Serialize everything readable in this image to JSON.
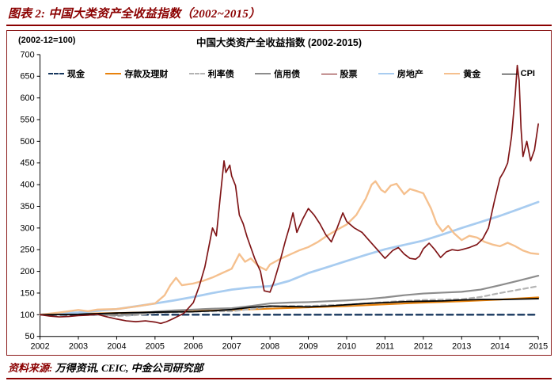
{
  "header": {
    "title": "图表 2:  中国大类资产全收益指数（2002~2015）"
  },
  "chart": {
    "title": "中国大类资产全收益指数 (2002-2015)",
    "base_note": "(2002-12=100)"
  },
  "footer": {
    "label": "资料来源:",
    "sources": " 万得资讯, CEIC, 中金公司研究部"
  },
  "colors": {
    "accent": "#8B0000",
    "axis": "#000000"
  },
  "chart_data": {
    "type": "line",
    "title": "中国大类资产全收益指数 (2002-2015)",
    "subtitle": "(2002-12=100)",
    "xlabel": "",
    "ylabel": "",
    "xlim": [
      2002,
      2015
    ],
    "ylim": [
      50,
      700
    ],
    "x_ticks": [
      2002,
      2003,
      2004,
      2005,
      2006,
      2007,
      2008,
      2009,
      2010,
      2011,
      2012,
      2013,
      2014,
      2015
    ],
    "y_ticks": [
      50,
      100,
      150,
      200,
      250,
      300,
      350,
      400,
      450,
      500,
      550,
      600,
      650,
      700
    ],
    "grid": false,
    "legend_position": "top",
    "series": [
      {
        "id": "cash",
        "name": "现金",
        "color": "#17375E",
        "dash": true,
        "dash_pattern": "8 5",
        "width": 2.4,
        "z": 1,
        "points": [
          [
            2002,
            100
          ],
          [
            2004,
            100
          ],
          [
            2006,
            100
          ],
          [
            2008,
            100
          ],
          [
            2010,
            100
          ],
          [
            2012,
            100
          ],
          [
            2014,
            100
          ],
          [
            2015,
            100
          ]
        ]
      },
      {
        "id": "deposits",
        "name": "存款及理财",
        "color": "#E8820C",
        "dash": false,
        "width": 2.2,
        "z": 2,
        "points": [
          [
            2002,
            100
          ],
          [
            2003,
            102
          ],
          [
            2004,
            104
          ],
          [
            2005,
            106
          ],
          [
            2006,
            108
          ],
          [
            2007,
            111
          ],
          [
            2008,
            114
          ],
          [
            2009,
            117
          ],
          [
            2010,
            120
          ],
          [
            2011,
            124
          ],
          [
            2012,
            128
          ],
          [
            2013,
            131
          ],
          [
            2014,
            135
          ],
          [
            2015,
            140
          ]
        ]
      },
      {
        "id": "rate-bonds",
        "name": "利率债",
        "color": "#B3B3B3",
        "dash": true,
        "dash_pattern": "6 4",
        "width": 2.2,
        "z": 3,
        "points": [
          [
            2002,
            100
          ],
          [
            2002.5,
            102
          ],
          [
            2003,
            103
          ],
          [
            2003.5,
            100
          ],
          [
            2004,
            97
          ],
          [
            2004.5,
            99
          ],
          [
            2005,
            104
          ],
          [
            2005.5,
            106
          ],
          [
            2006,
            107
          ],
          [
            2006.5,
            108
          ],
          [
            2007,
            108
          ],
          [
            2007.5,
            113
          ],
          [
            2008,
            119
          ],
          [
            2008.5,
            120
          ],
          [
            2009,
            120
          ],
          [
            2009.5,
            122
          ],
          [
            2010,
            123
          ],
          [
            2010.5,
            126
          ],
          [
            2011,
            129
          ],
          [
            2011.5,
            132
          ],
          [
            2012,
            134
          ],
          [
            2012.5,
            135
          ],
          [
            2013,
            136
          ],
          [
            2013.5,
            141
          ],
          [
            2014,
            150
          ],
          [
            2014.5,
            158
          ],
          [
            2015,
            166
          ]
        ]
      },
      {
        "id": "credit-bonds",
        "name": "信用债",
        "color": "#8C8C8C",
        "dash": false,
        "width": 2.2,
        "z": 4,
        "points": [
          [
            2002,
            100
          ],
          [
            2002.5,
            103
          ],
          [
            2003,
            104
          ],
          [
            2003.5,
            101
          ],
          [
            2004,
            99
          ],
          [
            2004.5,
            102
          ],
          [
            2005,
            107
          ],
          [
            2005.5,
            110
          ],
          [
            2006,
            112
          ],
          [
            2006.5,
            114
          ],
          [
            2007,
            115
          ],
          [
            2007.5,
            120
          ],
          [
            2008,
            126
          ],
          [
            2008.5,
            128
          ],
          [
            2009,
            129
          ],
          [
            2009.5,
            131
          ],
          [
            2010,
            133
          ],
          [
            2010.5,
            136
          ],
          [
            2011,
            140
          ],
          [
            2011.5,
            145
          ],
          [
            2012,
            149
          ],
          [
            2012.5,
            151
          ],
          [
            2013,
            153
          ],
          [
            2013.5,
            158
          ],
          [
            2014,
            168
          ],
          [
            2014.5,
            179
          ],
          [
            2015,
            190
          ]
        ]
      },
      {
        "id": "real-estate",
        "name": "房地产",
        "color": "#A8CCF0",
        "dash": false,
        "width": 2.8,
        "z": 5,
        "points": [
          [
            2002,
            100
          ],
          [
            2003,
            105
          ],
          [
            2004,
            113
          ],
          [
            2005,
            126
          ],
          [
            2005.5,
            133
          ],
          [
            2006,
            141
          ],
          [
            2006.5,
            150
          ],
          [
            2007,
            158
          ],
          [
            2007.5,
            163
          ],
          [
            2008,
            166
          ],
          [
            2008.5,
            178
          ],
          [
            2009,
            196
          ],
          [
            2009.5,
            210
          ],
          [
            2010,
            224
          ],
          [
            2010.5,
            238
          ],
          [
            2011,
            251
          ],
          [
            2011.5,
            261
          ],
          [
            2012,
            271
          ],
          [
            2012.5,
            285
          ],
          [
            2013,
            300
          ],
          [
            2013.5,
            314
          ],
          [
            2014,
            328
          ],
          [
            2014.5,
            344
          ],
          [
            2015,
            360
          ]
        ]
      },
      {
        "id": "gold",
        "name": "黄金",
        "color": "#F5C08E",
        "dash": false,
        "width": 2.4,
        "z": 6,
        "points": [
          [
            2002,
            100
          ],
          [
            2002.5,
            105
          ],
          [
            2003,
            111
          ],
          [
            2003.25,
            108
          ],
          [
            2003.5,
            112
          ],
          [
            2004,
            113
          ],
          [
            2004.5,
            119
          ],
          [
            2005,
            126
          ],
          [
            2005.25,
            145
          ],
          [
            2005.4,
            168
          ],
          [
            2005.55,
            185
          ],
          [
            2005.7,
            168
          ],
          [
            2006,
            172
          ],
          [
            2006.25,
            178
          ],
          [
            2006.5,
            186
          ],
          [
            2006.75,
            196
          ],
          [
            2007,
            206
          ],
          [
            2007.2,
            240
          ],
          [
            2007.35,
            222
          ],
          [
            2007.5,
            230
          ],
          [
            2007.7,
            212
          ],
          [
            2007.9,
            203
          ],
          [
            2008,
            216
          ],
          [
            2008.25,
            228
          ],
          [
            2008.5,
            238
          ],
          [
            2008.75,
            248
          ],
          [
            2009,
            256
          ],
          [
            2009.25,
            268
          ],
          [
            2009.5,
            283
          ],
          [
            2009.75,
            296
          ],
          [
            2010,
            308
          ],
          [
            2010.25,
            330
          ],
          [
            2010.5,
            368
          ],
          [
            2010.65,
            400
          ],
          [
            2010.75,
            408
          ],
          [
            2010.9,
            388
          ],
          [
            2011,
            382
          ],
          [
            2011.15,
            398
          ],
          [
            2011.3,
            402
          ],
          [
            2011.5,
            378
          ],
          [
            2011.65,
            390
          ],
          [
            2011.8,
            386
          ],
          [
            2012,
            380
          ],
          [
            2012.2,
            345
          ],
          [
            2012.35,
            310
          ],
          [
            2012.5,
            292
          ],
          [
            2012.65,
            305
          ],
          [
            2012.8,
            288
          ],
          [
            2013,
            272
          ],
          [
            2013.2,
            282
          ],
          [
            2013.4,
            278
          ],
          [
            2013.6,
            268
          ],
          [
            2013.8,
            262
          ],
          [
            2014,
            258
          ],
          [
            2014.2,
            266
          ],
          [
            2014.4,
            258
          ],
          [
            2014.6,
            248
          ],
          [
            2014.8,
            242
          ],
          [
            2015,
            240
          ]
        ]
      },
      {
        "id": "cpi",
        "name": "CPI",
        "color": "#000000",
        "dash": false,
        "width": 1.8,
        "z": 7,
        "points": [
          [
            2002,
            100
          ],
          [
            2003,
            101
          ],
          [
            2004,
            104
          ],
          [
            2005,
            106
          ],
          [
            2006,
            107
          ],
          [
            2006.5,
            109
          ],
          [
            2007,
            112
          ],
          [
            2007.5,
            117
          ],
          [
            2008,
            120
          ],
          [
            2008.5,
            119
          ],
          [
            2009,
            118
          ],
          [
            2009.5,
            120
          ],
          [
            2010,
            123
          ],
          [
            2010.5,
            126
          ],
          [
            2011,
            128
          ],
          [
            2011.5,
            130
          ],
          [
            2012,
            131
          ],
          [
            2012.5,
            132
          ],
          [
            2013,
            134
          ],
          [
            2013.5,
            135
          ],
          [
            2014,
            135
          ],
          [
            2014.5,
            136
          ],
          [
            2015,
            137
          ]
        ]
      },
      {
        "id": "stocks",
        "name": "股票",
        "color": "#7F1416",
        "dash": false,
        "width": 1.7,
        "z": 8,
        "points": [
          [
            2002,
            100
          ],
          [
            2002.25,
            97
          ],
          [
            2002.5,
            95
          ],
          [
            2002.75,
            96
          ],
          [
            2003,
            98
          ],
          [
            2003.25,
            99
          ],
          [
            2003.5,
            101
          ],
          [
            2003.75,
            95
          ],
          [
            2004,
            90
          ],
          [
            2004.25,
            86
          ],
          [
            2004.5,
            84
          ],
          [
            2004.75,
            86
          ],
          [
            2005,
            83
          ],
          [
            2005.15,
            80
          ],
          [
            2005.3,
            84
          ],
          [
            2005.5,
            92
          ],
          [
            2005.75,
            103
          ],
          [
            2006,
            128
          ],
          [
            2006.15,
            165
          ],
          [
            2006.3,
            210
          ],
          [
            2006.4,
            255
          ],
          [
            2006.5,
            300
          ],
          [
            2006.6,
            282
          ],
          [
            2006.7,
            370
          ],
          [
            2006.8,
            455
          ],
          [
            2006.85,
            428
          ],
          [
            2006.95,
            445
          ],
          [
            2007,
            420
          ],
          [
            2007.1,
            398
          ],
          [
            2007.2,
            330
          ],
          [
            2007.3,
            310
          ],
          [
            2007.4,
            280
          ],
          [
            2007.5,
            255
          ],
          [
            2007.6,
            230
          ],
          [
            2007.75,
            200
          ],
          [
            2007.85,
            155
          ],
          [
            2008,
            152
          ],
          [
            2008.1,
            175
          ],
          [
            2008.25,
            220
          ],
          [
            2008.4,
            270
          ],
          [
            2008.5,
            300
          ],
          [
            2008.6,
            335
          ],
          [
            2008.7,
            290
          ],
          [
            2008.85,
            320
          ],
          [
            2009,
            345
          ],
          [
            2009.15,
            330
          ],
          [
            2009.3,
            310
          ],
          [
            2009.45,
            285
          ],
          [
            2009.6,
            268
          ],
          [
            2009.75,
            300
          ],
          [
            2009.9,
            335
          ],
          [
            2010,
            315
          ],
          [
            2010.2,
            300
          ],
          [
            2010.4,
            290
          ],
          [
            2010.6,
            270
          ],
          [
            2010.8,
            250
          ],
          [
            2011,
            230
          ],
          [
            2011.2,
            248
          ],
          [
            2011.35,
            255
          ],
          [
            2011.5,
            240
          ],
          [
            2011.65,
            230
          ],
          [
            2011.8,
            228
          ],
          [
            2011.9,
            235
          ],
          [
            2012,
            252
          ],
          [
            2012.15,
            265
          ],
          [
            2012.3,
            250
          ],
          [
            2012.45,
            232
          ],
          [
            2012.6,
            245
          ],
          [
            2012.75,
            250
          ],
          [
            2012.9,
            248
          ],
          [
            2013,
            250
          ],
          [
            2013.2,
            255
          ],
          [
            2013.4,
            262
          ],
          [
            2013.55,
            275
          ],
          [
            2013.7,
            300
          ],
          [
            2013.85,
            360
          ],
          [
            2014,
            415
          ],
          [
            2014.1,
            430
          ],
          [
            2014.2,
            450
          ],
          [
            2014.3,
            510
          ],
          [
            2014.4,
            610
          ],
          [
            2014.45,
            675
          ],
          [
            2014.5,
            640
          ],
          [
            2014.55,
            530
          ],
          [
            2014.6,
            465
          ],
          [
            2014.7,
            500
          ],
          [
            2014.8,
            455
          ],
          [
            2014.9,
            480
          ],
          [
            2015,
            540
          ]
        ]
      }
    ],
    "legend_order": [
      "cash",
      "deposits",
      "rate-bonds",
      "credit-bonds",
      "stocks",
      "real-estate",
      "gold",
      "cpi"
    ]
  }
}
